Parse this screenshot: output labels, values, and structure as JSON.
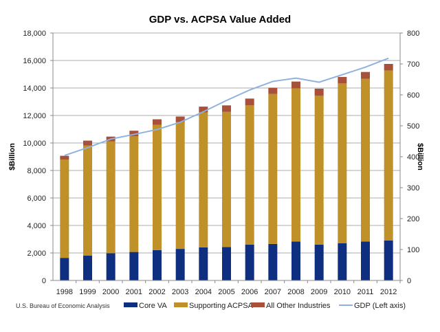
{
  "chart_data": {
    "type": "bar",
    "subtype": "stacked bar with line overlay",
    "title": "GDP vs. ACPSA Value Added",
    "source": "U.S. Bureau of Economic Analysis",
    "categories": [
      "1998",
      "1999",
      "2000",
      "2001",
      "2002",
      "2003",
      "2004",
      "2005",
      "2006",
      "2007",
      "2008",
      "2009",
      "2010",
      "2011",
      "2012"
    ],
    "y_left": {
      "label": "$Billion",
      "range": [
        0,
        18000
      ],
      "ticks": [
        "0",
        "2,000",
        "4,000",
        "6,000",
        "8,000",
        "10,000",
        "12,000",
        "14,000",
        "16,000",
        "18,000"
      ]
    },
    "y_right": {
      "label": "$Billion",
      "range": [
        0,
        800
      ],
      "ticks": [
        "0",
        "100",
        "200",
        "300",
        "400",
        "500",
        "600",
        "700",
        "800"
      ]
    },
    "grid": true,
    "legend_position": "bottom",
    "series": [
      {
        "name": "Core VA",
        "axis": "right",
        "kind": "bar",
        "color": "#0e2f7f",
        "values": [
          73,
          80,
          88,
          92,
          98,
          102,
          107,
          108,
          116,
          118,
          126,
          116,
          120,
          126,
          129
        ]
      },
      {
        "name": "Supporting ACPSA",
        "axis": "right",
        "kind": "bar",
        "color": "#c09128",
        "values": [
          318,
          356,
          362,
          374,
          405,
          410,
          436,
          437,
          450,
          485,
          495,
          481,
          517,
          526,
          550
        ]
      },
      {
        "name": "All Other Industries",
        "axis": "right",
        "kind": "bar",
        "color": "#a8503a",
        "values": [
          12,
          16,
          15,
          18,
          18,
          18,
          19,
          21,
          22,
          20,
          22,
          23,
          21,
          22,
          21
        ]
      },
      {
        "name": "GDP (Left axis)",
        "axis": "left",
        "kind": "line",
        "color": "#8eb1dd",
        "values": [
          9089,
          9661,
          10285,
          10622,
          10978,
          11511,
          12275,
          13094,
          13856,
          14478,
          14719,
          14419,
          14964,
          15518,
          16163
        ]
      }
    ]
  }
}
